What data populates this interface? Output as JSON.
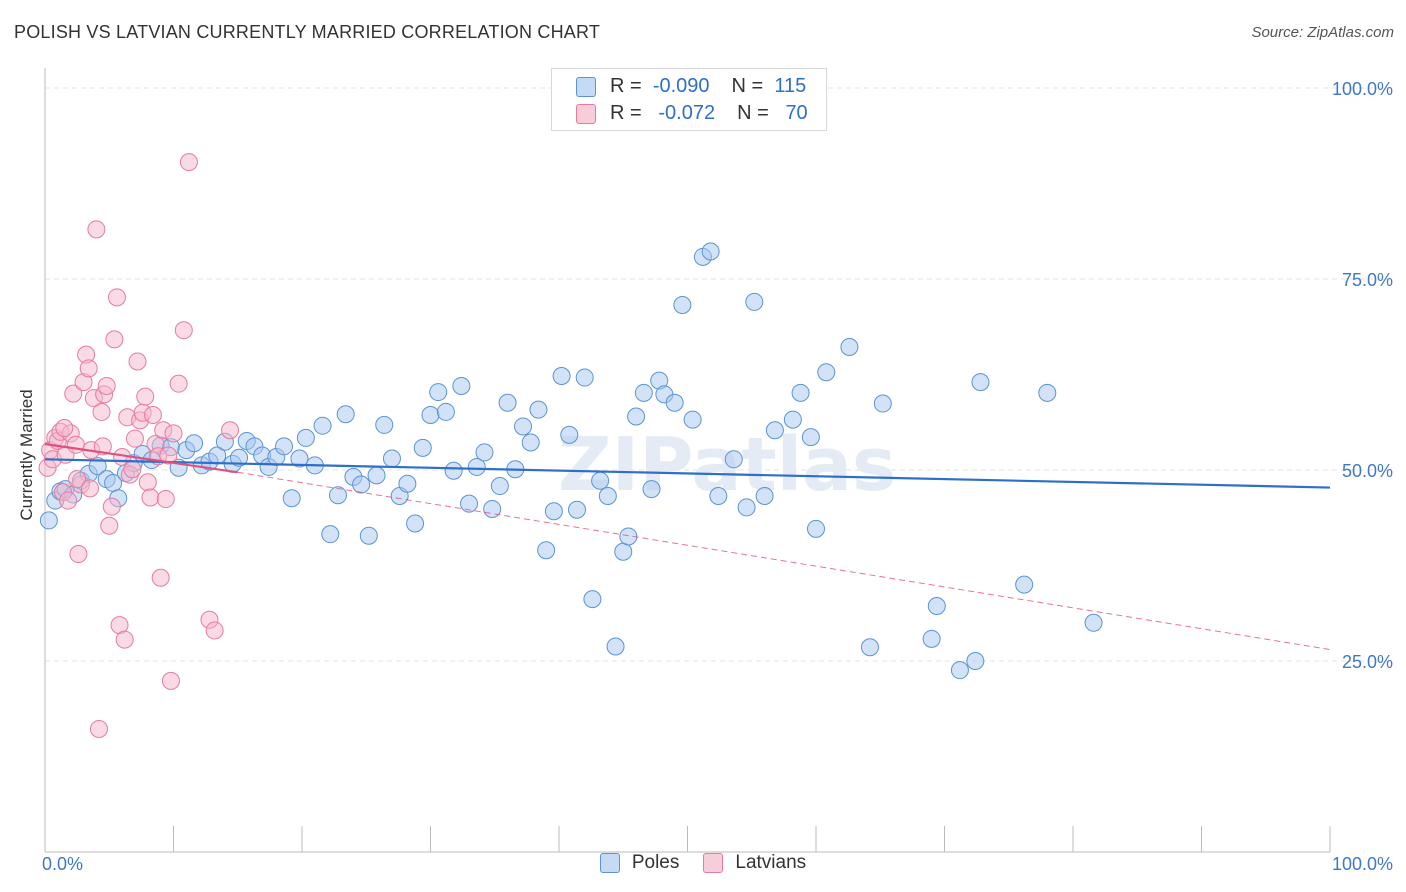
{
  "header": {
    "title": "POLISH VS LATVIAN CURRENTLY MARRIED CORRELATION CHART",
    "source": "Source: ZipAtlas.com"
  },
  "legend": {
    "rows": [
      {
        "r_label": "R =",
        "r_value": "-0.090",
        "n_label": "N =",
        "n_value": "115"
      },
      {
        "r_label": "R =",
        "r_value": "-0.072",
        "n_label": "N =",
        "n_value": "70"
      }
    ]
  },
  "bottom_legend": [
    {
      "label": "Poles"
    },
    {
      "label": "Latvians"
    }
  ],
  "colors": {
    "poles_fill": "#a8c8f0",
    "poles_stroke": "#5b93d6",
    "poles_line": "#2e6fc9",
    "latvians_fill": "#f5b8cc",
    "latvians_stroke": "#e87aa0",
    "latvians_line": "#e0507f",
    "axis_text": "#3f78c8",
    "grid": "#e3e3e3"
  },
  "watermark": "ZIPatlas",
  "chart_data": {
    "type": "scatter",
    "title": "POLISH VS LATVIAN CURRENTLY MARRIED CORRELATION CHART",
    "xlabel": "",
    "ylabel": "Currently Married",
    "xlim": [
      0,
      100
    ],
    "ylim": [
      0,
      100
    ],
    "x_tick_labels": [
      "0.0%",
      "100.0%"
    ],
    "y_tick_values": [
      25,
      50,
      75,
      100
    ],
    "y_tick_labels": [
      "25.0%",
      "50.0%",
      "75.0%",
      "100.0%"
    ],
    "grid": true,
    "legend_position": "top-center",
    "series": [
      {
        "name": "Poles",
        "r": -0.09,
        "n": 115,
        "trend": {
          "x": [
            0,
            100
          ],
          "y": [
            51.4,
            47.7
          ]
        },
        "points": [
          [
            0.3,
            43.4
          ],
          [
            0.8,
            46
          ],
          [
            1.2,
            47.2
          ],
          [
            1.6,
            47.5
          ],
          [
            2.2,
            46.8
          ],
          [
            2.8,
            48.6
          ],
          [
            3.4,
            49.5
          ],
          [
            4.1,
            50.5
          ],
          [
            4.8,
            48.8
          ],
          [
            5.3,
            48.3
          ],
          [
            5.7,
            46.3
          ],
          [
            6.3,
            49.6
          ],
          [
            6.9,
            50.9
          ],
          [
            7.6,
            52.1
          ],
          [
            8.3,
            51.3
          ],
          [
            9.0,
            53.2
          ],
          [
            9.8,
            53.0
          ],
          [
            10.4,
            50.3
          ],
          [
            11.0,
            52.6
          ],
          [
            11.6,
            53.5
          ],
          [
            12.2,
            50.6
          ],
          [
            12.8,
            51.1
          ],
          [
            13.4,
            51.9
          ],
          [
            14.0,
            53.7
          ],
          [
            14.6,
            50.8
          ],
          [
            15.1,
            51.6
          ],
          [
            15.7,
            53.8
          ],
          [
            16.3,
            53.1
          ],
          [
            16.9,
            51.9
          ],
          [
            17.4,
            50.4
          ],
          [
            18.0,
            51.7
          ],
          [
            18.6,
            53.1
          ],
          [
            19.2,
            46.3
          ],
          [
            19.8,
            51.5
          ],
          [
            20.3,
            54.2
          ],
          [
            21.0,
            50.6
          ],
          [
            21.6,
            55.8
          ],
          [
            22.2,
            41.6
          ],
          [
            22.8,
            46.7
          ],
          [
            23.4,
            57.3
          ],
          [
            24.0,
            49.1
          ],
          [
            24.6,
            48.1
          ],
          [
            25.2,
            41.4
          ],
          [
            25.8,
            49.3
          ],
          [
            26.4,
            55.9
          ],
          [
            27.0,
            51.5
          ],
          [
            27.6,
            46.6
          ],
          [
            28.2,
            48.2
          ],
          [
            28.8,
            43.0
          ],
          [
            29.4,
            52.9
          ],
          [
            30.0,
            57.2
          ],
          [
            30.6,
            60.2
          ],
          [
            31.2,
            57.6
          ],
          [
            31.8,
            49.9
          ],
          [
            32.4,
            61.0
          ],
          [
            33.0,
            45.6
          ],
          [
            33.6,
            50.4
          ],
          [
            34.2,
            52.3
          ],
          [
            34.8,
            44.9
          ],
          [
            35.4,
            47.9
          ],
          [
            36.0,
            58.8
          ],
          [
            36.6,
            50.1
          ],
          [
            37.2,
            55.7
          ],
          [
            37.8,
            53.6
          ],
          [
            38.4,
            57.9
          ],
          [
            39.0,
            39.5
          ],
          [
            39.6,
            44.6
          ],
          [
            40.2,
            62.3
          ],
          [
            40.8,
            54.6
          ],
          [
            41.4,
            44.8
          ],
          [
            42.0,
            62.1
          ],
          [
            42.6,
            33.1
          ],
          [
            43.2,
            48.6
          ],
          [
            43.8,
            46.6
          ],
          [
            44.4,
            26.9
          ],
          [
            45.0,
            39.3
          ],
          [
            45.4,
            41.3
          ],
          [
            46.0,
            57.0
          ],
          [
            46.6,
            60.1
          ],
          [
            47.2,
            47.5
          ],
          [
            47.8,
            61.7
          ],
          [
            48.2,
            59.9
          ],
          [
            49.0,
            58.8
          ],
          [
            49.6,
            71.6
          ],
          [
            50.4,
            56.6
          ],
          [
            51.2,
            77.9
          ],
          [
            51.8,
            78.6
          ],
          [
            52.4,
            46.6
          ],
          [
            53.6,
            51.4
          ],
          [
            54.6,
            45.1
          ],
          [
            55.2,
            72.0
          ],
          [
            56.0,
            46.6
          ],
          [
            56.8,
            55.2
          ],
          [
            58.2,
            56.6
          ],
          [
            58.8,
            60.1
          ],
          [
            59.6,
            54.3
          ],
          [
            60.0,
            42.3
          ],
          [
            60.8,
            62.8
          ],
          [
            62.6,
            66.1
          ],
          [
            64.2,
            26.8
          ],
          [
            65.2,
            58.7
          ],
          [
            69.4,
            32.2
          ],
          [
            69.0,
            27.9
          ],
          [
            71.2,
            23.8
          ],
          [
            72.4,
            25.0
          ],
          [
            72.8,
            61.5
          ],
          [
            76.2,
            35.0
          ],
          [
            78.0,
            60.1
          ],
          [
            81.6,
            30.0
          ]
        ]
      },
      {
        "name": "Latvians",
        "r": -0.072,
        "n": 70,
        "trend": {
          "x": [
            0,
            15
          ],
          "y": [
            53.4,
            49.7
          ]
        },
        "trend_dashed": {
          "x": [
            15,
            100
          ],
          "y": [
            49.7,
            26.5
          ]
        },
        "points": [
          [
            0.2,
            50.3
          ],
          [
            0.4,
            52.6
          ],
          [
            0.6,
            51.4
          ],
          [
            0.8,
            54.2
          ],
          [
            1.0,
            53.8
          ],
          [
            1.2,
            55.0
          ],
          [
            1.4,
            47.1
          ],
          [
            1.6,
            52.0
          ],
          [
            1.8,
            46.0
          ],
          [
            2.0,
            54.8
          ],
          [
            2.2,
            60.0
          ],
          [
            2.4,
            53.3
          ],
          [
            2.6,
            39.0
          ],
          [
            2.8,
            48.1
          ],
          [
            3.0,
            61.5
          ],
          [
            3.2,
            65.1
          ],
          [
            3.4,
            63.3
          ],
          [
            3.6,
            52.6
          ],
          [
            3.8,
            59.4
          ],
          [
            4.0,
            81.5
          ],
          [
            4.2,
            16.1
          ],
          [
            4.4,
            57.6
          ],
          [
            4.6,
            59.9
          ],
          [
            4.8,
            61.0
          ],
          [
            5.0,
            42.7
          ],
          [
            5.2,
            45.2
          ],
          [
            5.4,
            67.1
          ],
          [
            5.6,
            72.6
          ],
          [
            5.8,
            29.7
          ],
          [
            6.0,
            51.7
          ],
          [
            6.2,
            27.8
          ],
          [
            6.4,
            56.9
          ],
          [
            6.6,
            49.4
          ],
          [
            6.8,
            50.1
          ],
          [
            7.0,
            54.1
          ],
          [
            7.2,
            64.2
          ],
          [
            7.4,
            56.5
          ],
          [
            7.6,
            57.5
          ],
          [
            7.8,
            59.6
          ],
          [
            8.0,
            48.4
          ],
          [
            8.2,
            46.4
          ],
          [
            8.4,
            57.2
          ],
          [
            8.6,
            53.4
          ],
          [
            8.8,
            51.8
          ],
          [
            9.0,
            35.9
          ],
          [
            9.2,
            55.2
          ],
          [
            9.4,
            46.2
          ],
          [
            9.6,
            51.9
          ],
          [
            9.8,
            22.4
          ],
          [
            10.0,
            54.8
          ],
          [
            10.4,
            61.3
          ],
          [
            10.8,
            68.3
          ],
          [
            11.2,
            90.3
          ],
          [
            12.8,
            30.4
          ],
          [
            13.2,
            29.0
          ],
          [
            14.4,
            55.2
          ],
          [
            1.5,
            55.5
          ],
          [
            2.5,
            48.8
          ],
          [
            3.5,
            47.6
          ],
          [
            4.5,
            53.1
          ]
        ]
      }
    ]
  }
}
